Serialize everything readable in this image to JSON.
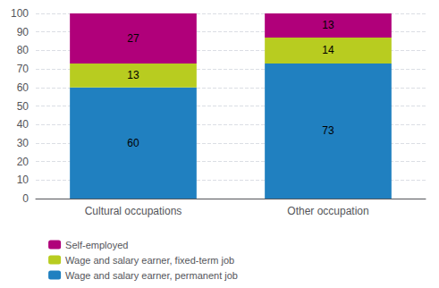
{
  "chart_data": {
    "type": "bar",
    "stacked": true,
    "categories": [
      "Cultural occupations",
      "Other occupation"
    ],
    "series": [
      {
        "name": "Wage and salary earner, permanent job",
        "color": "#2080c0",
        "values": [
          60,
          73
        ]
      },
      {
        "name": "Wage and salary earner, fixed-term job",
        "color": "#b8cc20",
        "values": [
          13,
          14
        ]
      },
      {
        "name": "Self-employed",
        "color": "#b0007a",
        "values": [
          27,
          13
        ]
      }
    ],
    "ylim": [
      0,
      100
    ],
    "yticks": [
      0,
      10,
      20,
      30,
      40,
      50,
      60,
      70,
      80,
      90,
      100
    ],
    "grid": true,
    "data_labels": true,
    "legend": "bottom"
  }
}
